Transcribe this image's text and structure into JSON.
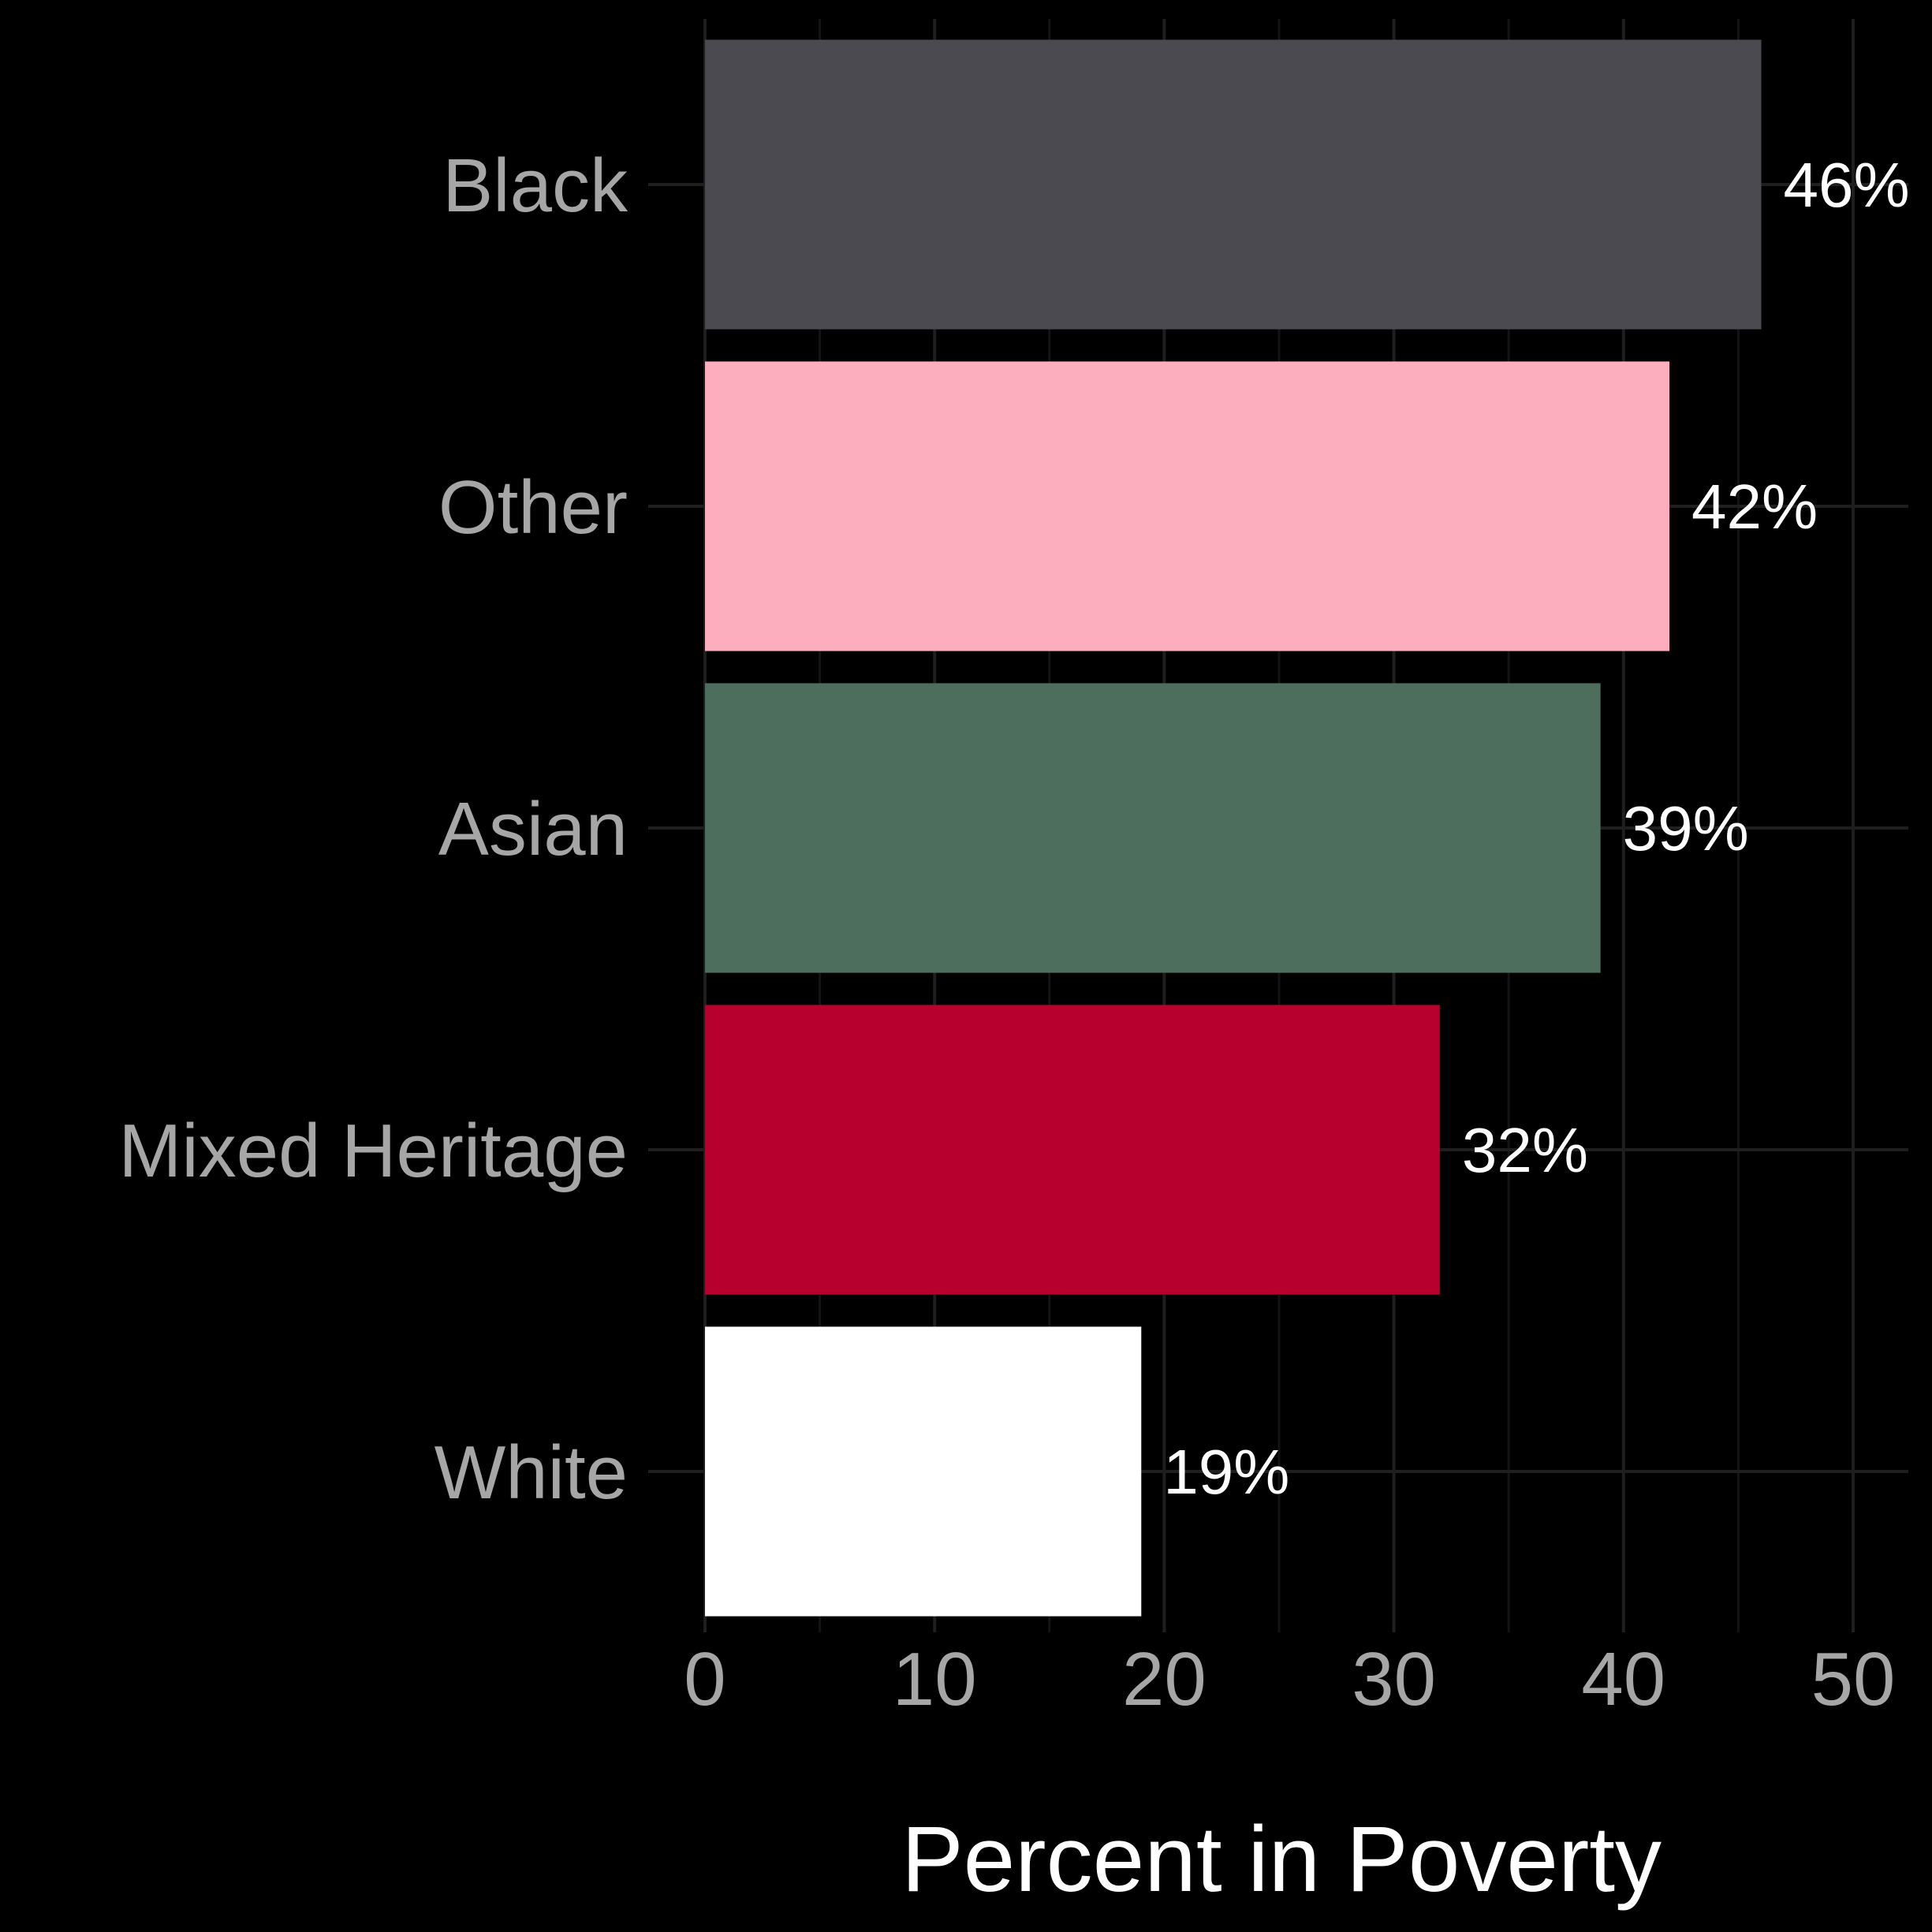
{
  "chart_data": {
    "type": "bar",
    "orientation": "horizontal",
    "categories": [
      "Black",
      "Other",
      "Asian",
      "Mixed Heritage",
      "White"
    ],
    "values": [
      46,
      42,
      39,
      32,
      19
    ],
    "value_labels": [
      "46%",
      "42%",
      "39%",
      "32%",
      "19%"
    ],
    "colors": [
      "#4b4a51",
      "#fcaebf",
      "#4e6e5d",
      "#b8002e",
      "#ffffff"
    ],
    "xlabel": "Percent in Poverty",
    "ylabel": "",
    "xlim": [
      0,
      50
    ],
    "x_ticks": [
      0,
      10,
      20,
      30,
      40,
      50
    ],
    "x_tick_labels": [
      "0",
      "10",
      "20",
      "30",
      "40",
      "50"
    ],
    "grid": true,
    "legend": "none",
    "background": "#000000"
  }
}
